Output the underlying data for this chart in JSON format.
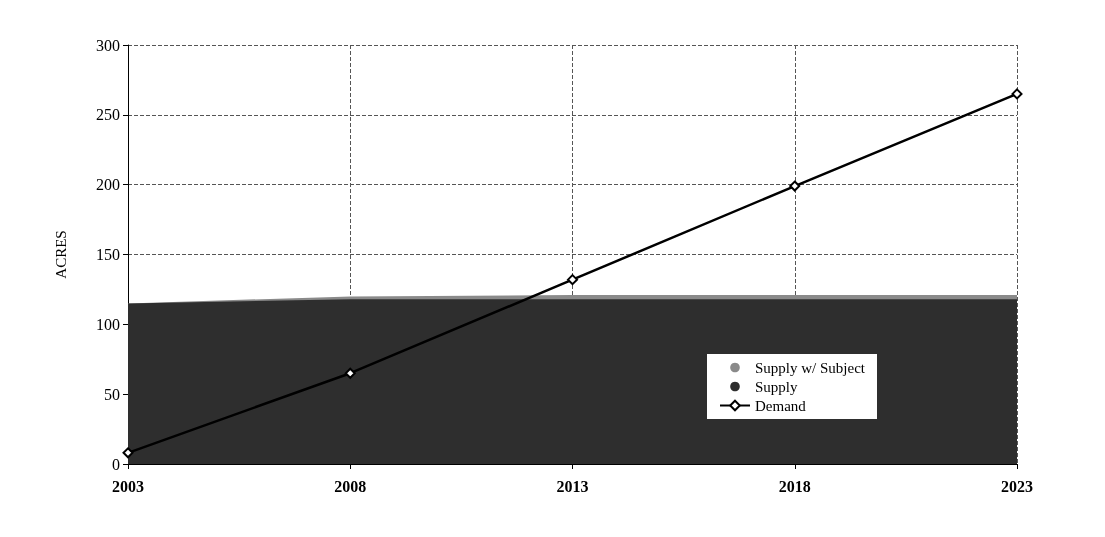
{
  "chart_data": {
    "type": "area",
    "ylabel": "ACRES",
    "x": [
      2003,
      2008,
      2013,
      2018,
      2023
    ],
    "xlim": [
      2003,
      2023
    ],
    "xticks": [
      2003,
      2008,
      2013,
      2018,
      2023
    ],
    "ylim": [
      0,
      300
    ],
    "yticks": [
      0,
      50,
      100,
      150,
      200,
      250,
      300
    ],
    "grid": true,
    "legend": "bottom right",
    "series": [
      {
        "name": "Supply w/ Subject",
        "color": "#8a8a8a",
        "values": [
          115,
          120,
          121,
          121,
          121
        ]
      },
      {
        "name": "Supply",
        "color": "#2e2e2e",
        "values": [
          115,
          118,
          118,
          118,
          118
        ]
      },
      {
        "name": "Demand",
        "type": "line",
        "color": "#000000",
        "marker": "diamond",
        "line_style": "solid",
        "values": [
          8,
          65,
          132,
          199,
          265
        ]
      }
    ]
  }
}
